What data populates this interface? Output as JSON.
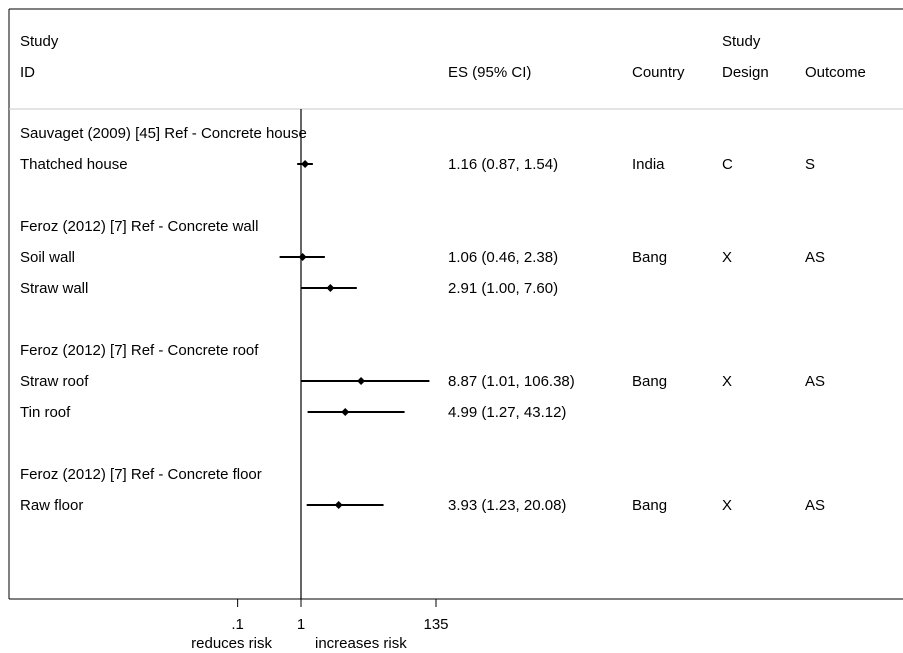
{
  "headers": {
    "study_line1": "Study",
    "study_line2": "ID",
    "es": "ES (95% CI)",
    "country": "Country",
    "design_line1": "Study",
    "design_line2": "Design",
    "outcome": "Outcome"
  },
  "chart_data": {
    "type": "forest",
    "scale": "log",
    "xlim": [
      0.1,
      135
    ],
    "ticks": [
      ".1",
      "1",
      "135"
    ],
    "null_value": 1,
    "xlabel_left": "reduces risk",
    "xlabel_right": "increases risk",
    "groups": [
      {
        "header": "Sauvaget (2009) [45] Ref - Concrete house",
        "rows": [
          {
            "label": "Thatched house",
            "es": 1.16,
            "lo": 0.87,
            "hi": 1.54,
            "es_text": "1.16 (0.87, 1.54)",
            "country": "India",
            "design": "C",
            "outcome": "S"
          }
        ]
      },
      {
        "header": "Feroz (2012) [7] Ref - Concrete wall",
        "rows": [
          {
            "label": "Soil wall",
            "es": 1.06,
            "lo": 0.46,
            "hi": 2.38,
            "es_text": "1.06 (0.46, 2.38)",
            "country": "Bang",
            "design": "X",
            "outcome": "AS"
          },
          {
            "label": "Straw wall",
            "es": 2.91,
            "lo": 1.0,
            "hi": 7.6,
            "es_text": "2.91 (1.00, 7.60)",
            "country": "",
            "design": "",
            "outcome": ""
          }
        ]
      },
      {
        "header": "Feroz (2012) [7] Ref - Concrete roof",
        "rows": [
          {
            "label": "Straw roof",
            "es": 8.87,
            "lo": 1.01,
            "hi": 106.38,
            "es_text": "8.87 (1.01, 106.38)",
            "country": "Bang",
            "design": "X",
            "outcome": "AS"
          },
          {
            "label": "Tin roof",
            "es": 4.99,
            "lo": 1.27,
            "hi": 43.12,
            "es_text": "4.99 (1.27, 43.12)",
            "country": "",
            "design": "",
            "outcome": ""
          }
        ]
      },
      {
        "header": "Feroz (2012) [7] Ref - Concrete floor",
        "rows": [
          {
            "label": "Raw floor",
            "es": 3.93,
            "lo": 1.23,
            "hi": 20.08,
            "es_text": "3.93 (1.23, 20.08)",
            "country": "Bang",
            "design": "X",
            "outcome": "AS"
          }
        ]
      }
    ]
  }
}
